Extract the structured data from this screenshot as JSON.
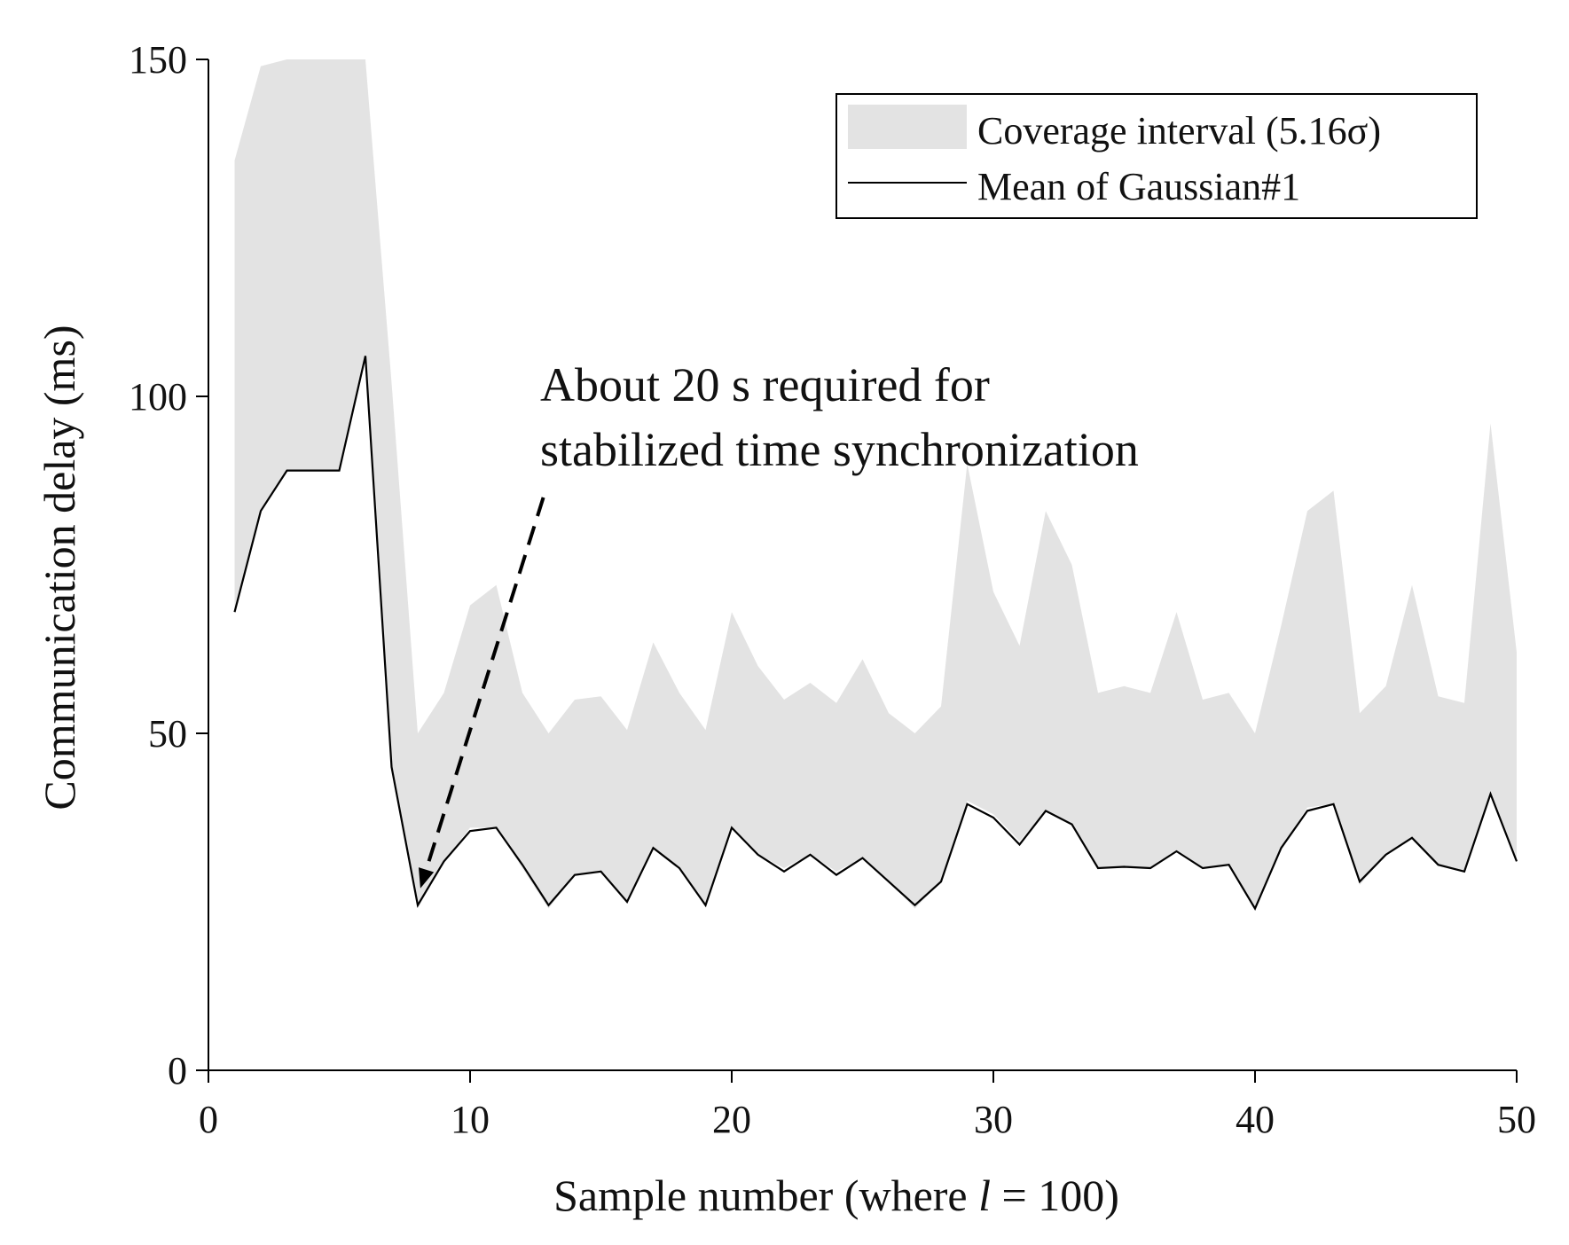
{
  "chart_data": {
    "type": "area",
    "title": "",
    "xlabel": "Sample number (where l = 100)",
    "xlabel_prefix": "Sample number (where ",
    "xlabel_var": "l",
    "xlabel_suffix": " = 100)",
    "ylabel": "Communication delay (ms)",
    "xlim": [
      0,
      50
    ],
    "ylim": [
      0,
      150
    ],
    "xticks": [
      0,
      10,
      20,
      30,
      40,
      50
    ],
    "yticks": [
      0,
      50,
      100,
      150
    ],
    "grid": false,
    "legend_position": "top-right",
    "series": [
      {
        "name": "Coverage interval (5.16σ)",
        "kind": "band",
        "color": "#e3e3e3",
        "x": [
          1,
          2,
          3,
          4,
          5,
          6,
          7,
          8,
          9,
          10,
          11,
          12,
          13,
          14,
          15,
          16,
          17,
          18,
          19,
          20,
          21,
          22,
          23,
          24,
          25,
          26,
          27,
          28,
          29,
          30,
          31,
          32,
          33,
          34,
          35,
          36,
          37,
          38,
          39,
          40,
          41,
          42,
          43,
          44,
          45,
          46,
          47,
          48,
          49,
          50
        ],
        "upper": [
          135,
          149,
          150,
          150,
          150,
          150,
          102,
          50,
          56,
          69,
          72,
          56,
          50,
          55,
          55.5,
          50.5,
          63.5,
          56,
          50.5,
          68,
          60,
          55,
          57.5,
          54.5,
          61,
          53,
          50,
          54,
          90,
          71,
          63,
          83,
          75,
          56,
          57,
          56,
          68,
          55,
          56,
          50,
          66,
          83,
          86,
          53,
          57,
          72,
          55.5,
          54.5,
          96,
          62
        ],
        "lower": [
          68,
          83,
          89,
          89,
          89,
          106,
          45,
          24,
          31,
          36,
          36,
          30,
          24,
          29,
          29.5,
          25,
          33,
          30,
          24.5,
          36,
          32,
          30,
          32,
          29.5,
          31.5,
          28,
          24,
          28,
          40,
          38,
          34,
          38.5,
          36.5,
          30,
          30,
          30,
          32.5,
          30,
          30.5,
          24,
          33,
          39,
          39.5,
          27.5,
          32,
          34.5,
          30.5,
          29.5,
          41,
          31
        ]
      },
      {
        "name": "Mean of Gaussian#1",
        "kind": "line",
        "color": "#000000",
        "x": [
          1,
          2,
          3,
          4,
          5,
          6,
          7,
          8,
          9,
          10,
          11,
          12,
          13,
          14,
          15,
          16,
          17,
          18,
          19,
          20,
          21,
          22,
          23,
          24,
          25,
          26,
          27,
          28,
          29,
          30,
          31,
          32,
          33,
          34,
          35,
          36,
          37,
          38,
          39,
          40,
          41,
          42,
          43,
          44,
          45,
          46,
          47,
          48,
          49,
          50
        ],
        "values": [
          68,
          83,
          89,
          89,
          89,
          106,
          45,
          24.5,
          31,
          35.5,
          36,
          30.5,
          24.5,
          29,
          29.5,
          25,
          33,
          30,
          24.5,
          36,
          32,
          29.5,
          32,
          29,
          31.5,
          28,
          24.5,
          28,
          39.5,
          37.5,
          33.5,
          38.5,
          36.5,
          30,
          30.2,
          30,
          32.5,
          30,
          30.5,
          24,
          33,
          38.5,
          39.5,
          28,
          32,
          34.5,
          30.5,
          29.5,
          41,
          31
        ]
      }
    ],
    "legend": [
      "Coverage interval (5.16σ)",
      "Mean of Gaussian#1"
    ],
    "annotation": {
      "line1": "About 20 s required for",
      "line2": "stabilized time synchronization",
      "arrow_from": [
        12.8,
        85
      ],
      "arrow_to": [
        8.1,
        27
      ]
    }
  }
}
